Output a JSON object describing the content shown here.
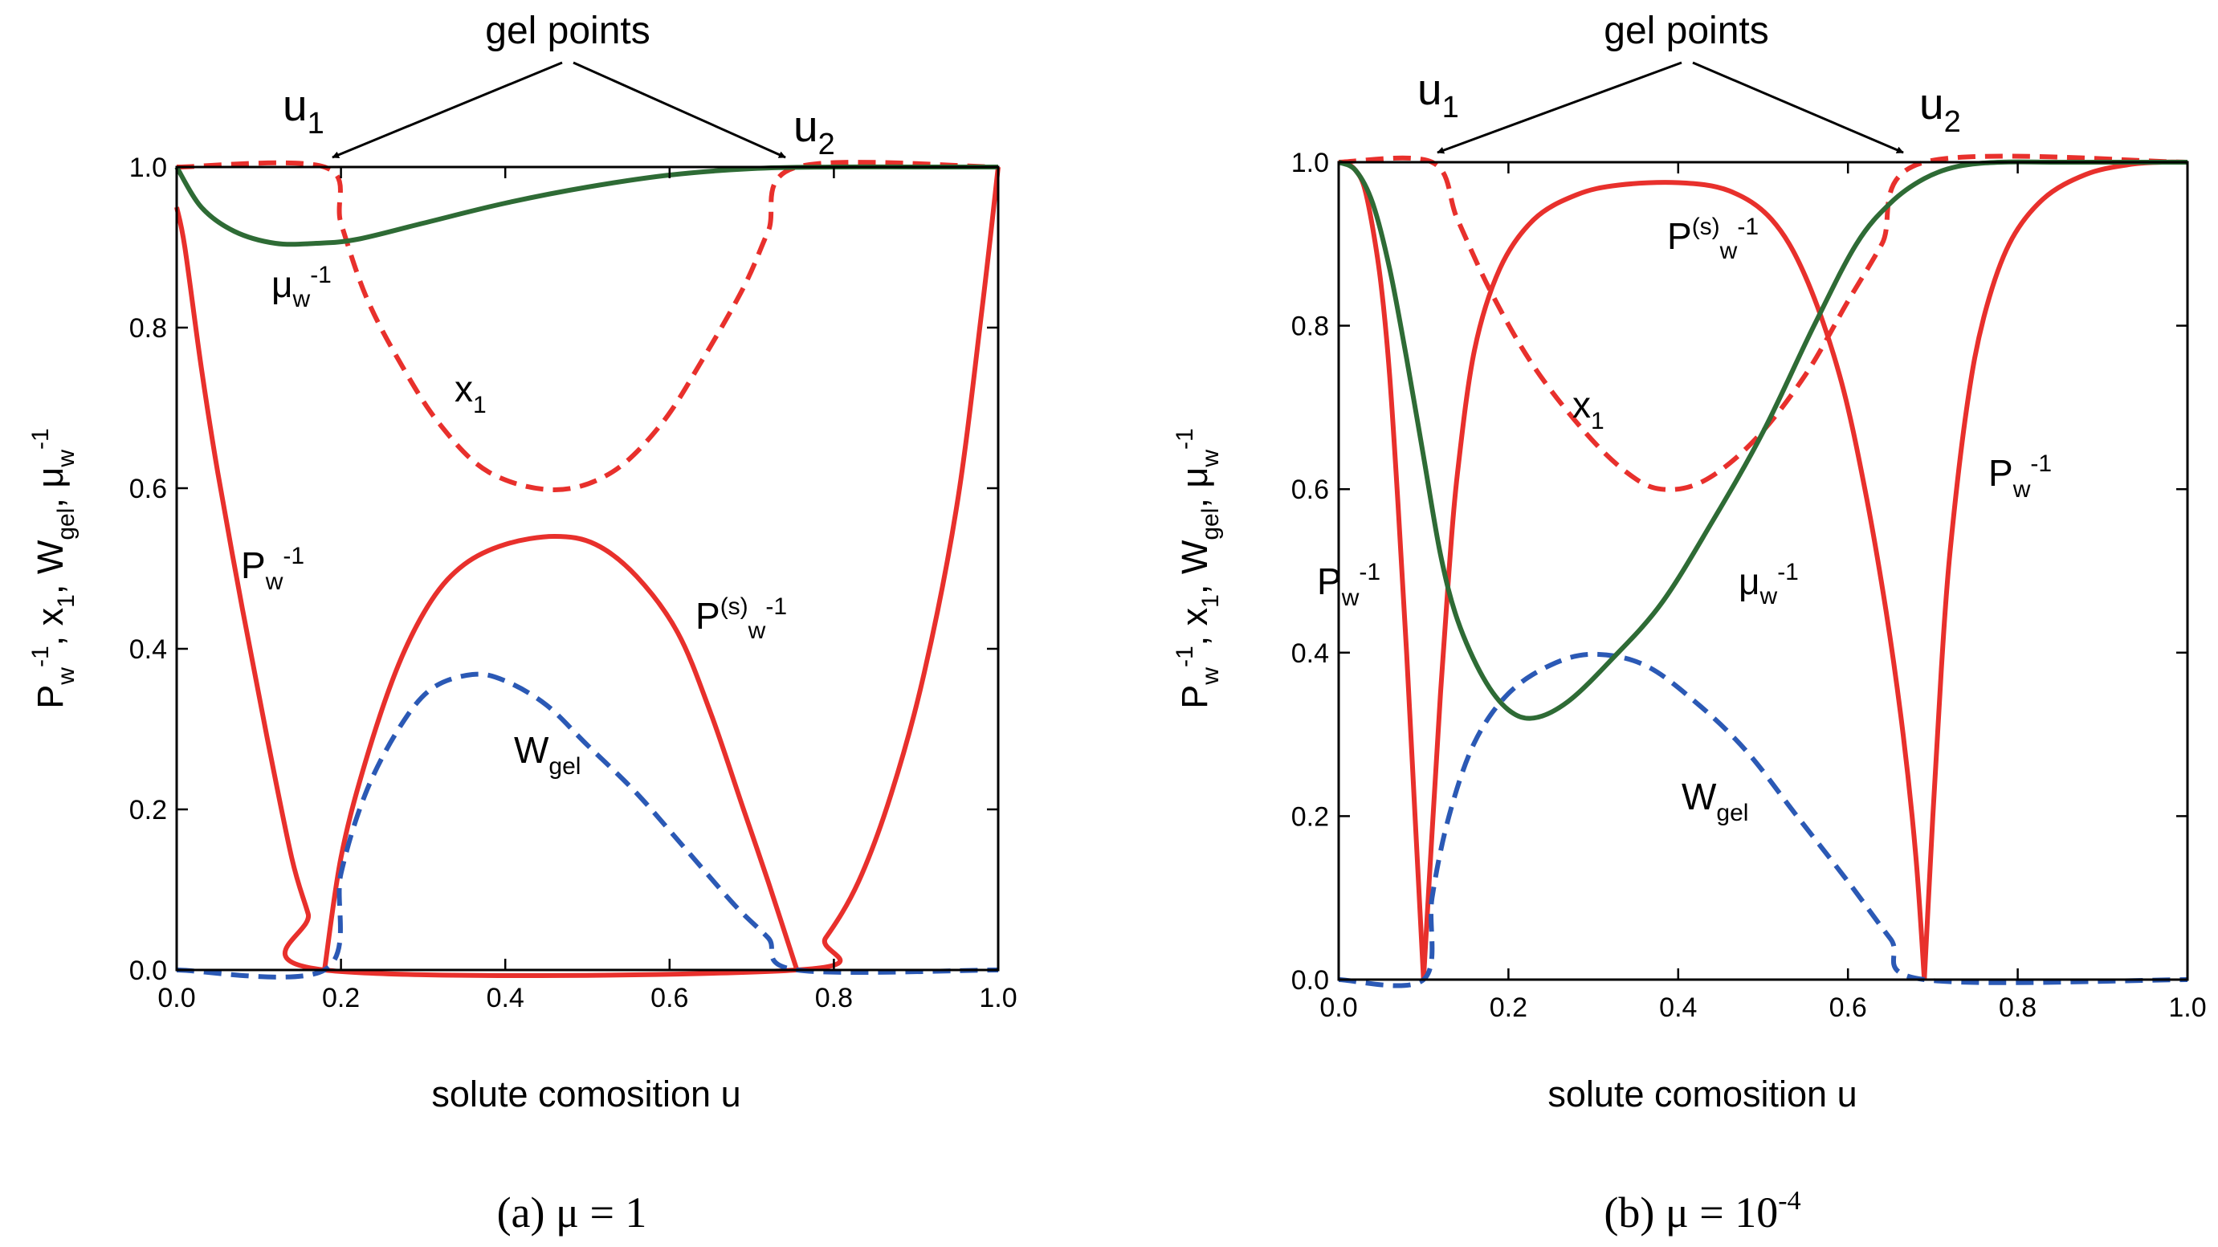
{
  "panels": [
    {
      "caption_prefix": "(a)  μ = 1",
      "caption_sup": "",
      "gel_label": "gel points",
      "u1": "u",
      "u1_sub": "1",
      "u2": "u",
      "u2_sub": "2",
      "xlabel": "solute comosition  u",
      "ylabel": {
        "P": "P",
        "P_sub": "w",
        "P_sup": "-1",
        "x": "x",
        "x_sub": "1",
        "W": "W",
        "W_sub": "gel",
        "mu": "μ",
        "mu_sub": "w",
        "mu_sup": "-1",
        "sep": ",  "
      },
      "labels": {
        "mu": {
          "base": "μ",
          "sub": "w",
          "sup": "-1"
        },
        "x1": {
          "base": "x",
          "sub": "1"
        },
        "Pw": {
          "base": "P",
          "sub": "w",
          "sup": "-1"
        },
        "Ps": {
          "base": "P",
          "sup1": "(s)",
          "sub": "w",
          "sup": "-1"
        },
        "Wgel": {
          "base": "W",
          "sub": "gel"
        }
      }
    },
    {
      "caption_prefix": "(b)  μ = 10",
      "caption_sup": "-4",
      "gel_label": "gel points",
      "u1": "u",
      "u1_sub": "1",
      "u2": "u",
      "u2_sub": "2",
      "xlabel": "solute comosition  u",
      "ylabel": {
        "P": "P",
        "P_sub": "w",
        "P_sup": "-1",
        "x": "x",
        "x_sub": "1",
        "W": "W",
        "W_sub": "gel",
        "mu": "μ",
        "mu_sub": "w",
        "mu_sup": "-1",
        "sep": ",  "
      },
      "labels": {
        "mu": {
          "base": "μ",
          "sub": "w",
          "sup": "-1"
        },
        "x1": {
          "base": "x",
          "sub": "1"
        },
        "Pw": {
          "base": "P",
          "sub": "w",
          "sup": "-1"
        },
        "Ps": {
          "base": "P",
          "sup1": "(s)",
          "sub": "w",
          "sup": "-1"
        },
        "Wgel": {
          "base": "W",
          "sub": "gel"
        }
      }
    }
  ],
  "chart_data": [
    {
      "type": "line",
      "title": "(a)  μ = 1",
      "xlabel": "solute comosition  u",
      "ylabel": "Pw^-1, x1, Wgel, μw^-1",
      "xlim": [
        0,
        1
      ],
      "ylim": [
        0,
        1
      ],
      "xticks": [
        "0.0",
        "0.2",
        "0.4",
        "0.6",
        "0.8",
        "1.0"
      ],
      "yticks": [
        "0.0",
        "0.2",
        "0.4",
        "0.6",
        "0.8",
        "1.0"
      ],
      "gel_points": [
        0.18,
        0.755
      ],
      "series": [
        {
          "name": "Pw^-1",
          "color": "#e8302c",
          "dash": "solid",
          "x": [
            0.0,
            0.01,
            0.03,
            0.05,
            0.08,
            0.11,
            0.14,
            0.16,
            0.18,
            0.755,
            0.79,
            0.83,
            0.87,
            0.91,
            0.95,
            0.98,
            1.0
          ],
          "y": [
            0.95,
            0.9,
            0.75,
            0.62,
            0.45,
            0.29,
            0.14,
            0.07,
            0.0,
            0.0,
            0.04,
            0.11,
            0.22,
            0.37,
            0.58,
            0.82,
            1.0
          ]
        },
        {
          "name": "P(s)w^-1",
          "color": "#e8302c",
          "dash": "solid",
          "x": [
            0.18,
            0.2,
            0.23,
            0.27,
            0.31,
            0.35,
            0.4,
            0.46,
            0.51,
            0.56,
            0.61,
            0.65,
            0.69,
            0.72,
            0.755
          ],
          "y": [
            0.0,
            0.14,
            0.26,
            0.38,
            0.46,
            0.505,
            0.53,
            0.54,
            0.53,
            0.49,
            0.42,
            0.32,
            0.2,
            0.11,
            0.0
          ]
        },
        {
          "name": "Wgel",
          "color": "#2b59b5",
          "dash": "dashed",
          "x": [
            0.0,
            0.18,
            0.2,
            0.23,
            0.27,
            0.31,
            0.36,
            0.4,
            0.45,
            0.5,
            0.56,
            0.62,
            0.68,
            0.72,
            0.755,
            1.0
          ],
          "y": [
            0.0,
            0.0,
            0.12,
            0.22,
            0.3,
            0.35,
            0.368,
            0.36,
            0.33,
            0.28,
            0.22,
            0.15,
            0.08,
            0.04,
            0.0,
            0.0
          ]
        },
        {
          "name": "x1",
          "color": "#e8302c",
          "dash": "dashed",
          "x": [
            0.0,
            0.18,
            0.2,
            0.23,
            0.27,
            0.32,
            0.38,
            0.46,
            0.53,
            0.59,
            0.64,
            0.69,
            0.72,
            0.755,
            1.0
          ],
          "y": [
            1.0,
            1.0,
            0.93,
            0.84,
            0.76,
            0.68,
            0.62,
            0.598,
            0.62,
            0.68,
            0.76,
            0.85,
            0.92,
            1.0,
            1.0
          ]
        },
        {
          "name": "μw^-1",
          "color": "#2e6b35",
          "dash": "solid",
          "x": [
            0.0,
            0.03,
            0.07,
            0.12,
            0.17,
            0.22,
            0.3,
            0.4,
            0.5,
            0.6,
            0.7,
            0.8,
            0.9,
            1.0
          ],
          "y": [
            1.0,
            0.95,
            0.92,
            0.905,
            0.905,
            0.91,
            0.93,
            0.955,
            0.975,
            0.99,
            0.998,
            1.0,
            1.0,
            1.0
          ]
        }
      ]
    },
    {
      "type": "line",
      "title": "(b)  μ = 10^-4",
      "xlabel": "solute comosition  u",
      "ylabel": "Pw^-1, x1, Wgel, μw^-1",
      "xlim": [
        0,
        1
      ],
      "ylim": [
        0,
        1
      ],
      "xticks": [
        "0.0",
        "0.2",
        "0.4",
        "0.6",
        "0.8",
        "1.0"
      ],
      "yticks": [
        "0.0",
        "0.2",
        "0.4",
        "0.6",
        "0.8",
        "1.0"
      ],
      "gel_points": [
        0.11,
        0.69
      ],
      "series": [
        {
          "name": "Pw^-1 (left)",
          "color": "#e8302c",
          "dash": "solid",
          "x": [
            0.0,
            0.01,
            0.02,
            0.03,
            0.04,
            0.05,
            0.06,
            0.07,
            0.08,
            0.09,
            0.1
          ],
          "y": [
            1.0,
            0.998,
            0.99,
            0.97,
            0.92,
            0.85,
            0.74,
            0.58,
            0.4,
            0.2,
            0.0
          ]
        },
        {
          "name": "P(s)w^-1",
          "color": "#e8302c",
          "dash": "solid",
          "x": [
            0.1,
            0.11,
            0.12,
            0.13,
            0.14,
            0.16,
            0.19,
            0.23,
            0.28,
            0.33,
            0.4,
            0.46,
            0.51,
            0.55,
            0.59,
            0.62,
            0.645,
            0.665,
            0.68,
            0.69
          ],
          "y": [
            0.0,
            0.18,
            0.35,
            0.5,
            0.62,
            0.77,
            0.87,
            0.93,
            0.96,
            0.972,
            0.975,
            0.965,
            0.93,
            0.86,
            0.74,
            0.6,
            0.45,
            0.3,
            0.15,
            0.0
          ]
        },
        {
          "name": "Pw^-1 (right)",
          "color": "#e8302c",
          "dash": "solid",
          "x": [
            0.69,
            0.7,
            0.71,
            0.72,
            0.74,
            0.76,
            0.79,
            0.83,
            0.88,
            0.93,
            0.97,
            1.0
          ],
          "y": [
            0.0,
            0.2,
            0.38,
            0.52,
            0.7,
            0.81,
            0.9,
            0.955,
            0.985,
            0.997,
            1.0,
            1.0
          ]
        },
        {
          "name": "Wgel",
          "color": "#2b59b5",
          "dash": "dashed",
          "x": [
            0.0,
            0.1,
            0.11,
            0.13,
            0.16,
            0.2,
            0.25,
            0.3,
            0.36,
            0.42,
            0.48,
            0.54,
            0.6,
            0.65,
            0.69,
            1.0
          ],
          "y": [
            0.0,
            0.0,
            0.1,
            0.2,
            0.29,
            0.35,
            0.385,
            0.398,
            0.385,
            0.34,
            0.28,
            0.2,
            0.12,
            0.05,
            0.0,
            0.0
          ]
        },
        {
          "name": "x1",
          "color": "#e8302c",
          "dash": "dashed",
          "x": [
            0.0,
            0.11,
            0.14,
            0.18,
            0.23,
            0.29,
            0.34,
            0.38,
            0.43,
            0.49,
            0.55,
            0.6,
            0.64,
            0.69,
            1.0
          ],
          "y": [
            1.0,
            1.0,
            0.93,
            0.84,
            0.75,
            0.67,
            0.62,
            0.6,
            0.61,
            0.66,
            0.74,
            0.83,
            0.9,
            1.0,
            1.0
          ]
        },
        {
          "name": "μw^-1",
          "color": "#2e6b35",
          "dash": "solid",
          "x": [
            0.0,
            0.02,
            0.04,
            0.06,
            0.08,
            0.1,
            0.12,
            0.14,
            0.17,
            0.2,
            0.23,
            0.27,
            0.32,
            0.38,
            0.44,
            0.5,
            0.56,
            0.61,
            0.65,
            0.69,
            0.73,
            0.78,
            0.85,
            1.0
          ],
          "y": [
            1.0,
            0.99,
            0.95,
            0.87,
            0.76,
            0.64,
            0.52,
            0.44,
            0.37,
            0.33,
            0.32,
            0.34,
            0.39,
            0.46,
            0.56,
            0.67,
            0.8,
            0.9,
            0.95,
            0.98,
            0.995,
            1.0,
            1.0,
            1.0
          ]
        }
      ]
    }
  ]
}
